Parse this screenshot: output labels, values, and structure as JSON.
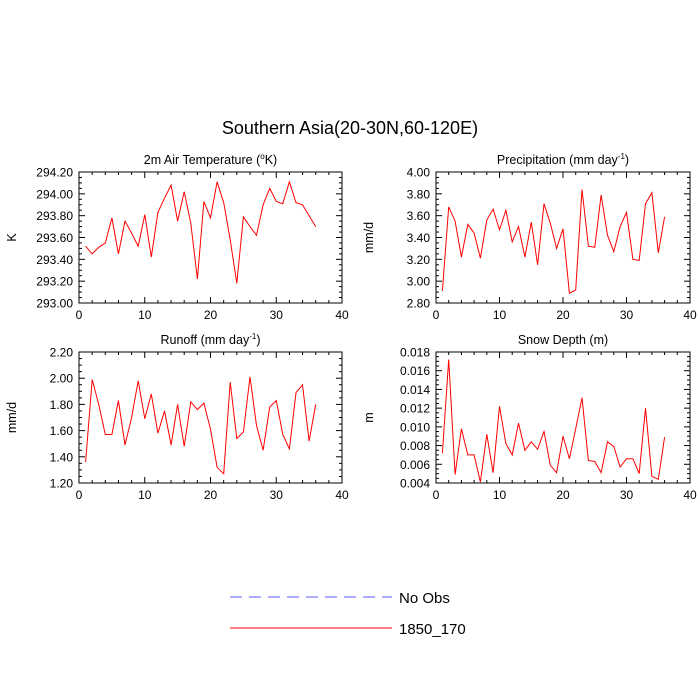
{
  "page_title": "Southern Asia(20-30N,60-120E)",
  "legend": {
    "obs_label": "No Obs",
    "model_label": "1850_170",
    "obs_color": "#5a5aff",
    "model_color": "#ff0000"
  },
  "chart_data": [
    {
      "type": "line",
      "title": "2m Air Temperature (°K)",
      "title_main": "2m Air Temperature (",
      "title_sup": "o",
      "title_tail": "K)",
      "xlabel": "",
      "ylabel": "K",
      "xlim": [
        0,
        40
      ],
      "ylim": [
        293.0,
        294.2
      ],
      "xticks": [
        0,
        10,
        20,
        30,
        40
      ],
      "yticks": [
        293.0,
        293.2,
        293.4,
        293.6,
        293.8,
        294.0,
        294.2
      ],
      "ytick_labels": [
        "293.00",
        "293.20",
        "293.40",
        "293.60",
        "293.80",
        "294.00",
        "294.20"
      ],
      "series": [
        {
          "name": "1850_170",
          "color": "#ff0000",
          "x": [
            1,
            2,
            3,
            4,
            5,
            6,
            7,
            8,
            9,
            10,
            11,
            12,
            13,
            14,
            15,
            16,
            17,
            18,
            19,
            20,
            21,
            22,
            23,
            24,
            25,
            26,
            27,
            28,
            29,
            30,
            31,
            32,
            33,
            34,
            35,
            36
          ],
          "y": [
            293.52,
            293.45,
            293.51,
            293.55,
            293.78,
            293.45,
            293.75,
            293.64,
            293.52,
            293.81,
            293.42,
            293.83,
            293.96,
            294.08,
            293.75,
            294.02,
            293.73,
            293.22,
            293.93,
            293.78,
            294.11,
            293.92,
            293.58,
            293.18,
            293.79,
            293.7,
            293.62,
            293.9,
            294.05,
            293.93,
            293.91,
            294.11,
            293.92,
            293.9,
            293.8,
            293.7
          ]
        }
      ]
    },
    {
      "type": "line",
      "title": "Precipitation (mm day-1)",
      "title_main": "Precipitation (mm day",
      "title_sup": "-1",
      "title_tail": ")",
      "xlabel": "",
      "ylabel": "mm/d",
      "xlim": [
        0,
        40
      ],
      "ylim": [
        2.8,
        4.0
      ],
      "xticks": [
        0,
        10,
        20,
        30,
        40
      ],
      "yticks": [
        2.8,
        3.0,
        3.2,
        3.4,
        3.6,
        3.8,
        4.0
      ],
      "ytick_labels": [
        "2.80",
        "3.00",
        "3.20",
        "3.40",
        "3.60",
        "3.80",
        "4.00"
      ],
      "series": [
        {
          "name": "1850_170",
          "color": "#ff0000",
          "x": [
            1,
            2,
            3,
            4,
            5,
            6,
            7,
            8,
            9,
            10,
            11,
            12,
            13,
            14,
            15,
            16,
            17,
            18,
            19,
            20,
            21,
            22,
            23,
            24,
            25,
            26,
            27,
            28,
            29,
            30,
            31,
            32,
            33,
            34,
            35,
            36
          ],
          "y": [
            2.91,
            3.68,
            3.55,
            3.22,
            3.52,
            3.44,
            3.21,
            3.56,
            3.66,
            3.47,
            3.65,
            3.36,
            3.5,
            3.22,
            3.54,
            3.15,
            3.71,
            3.53,
            3.3,
            3.48,
            2.89,
            2.92,
            3.84,
            3.32,
            3.31,
            3.79,
            3.42,
            3.27,
            3.5,
            3.63,
            3.2,
            3.19,
            3.71,
            3.81,
            3.26,
            3.59
          ]
        }
      ]
    },
    {
      "type": "line",
      "title": "Runoff (mm day-1)",
      "title_main": "Runoff (mm day",
      "title_sup": "-1",
      "title_tail": ")",
      "xlabel": "",
      "ylabel": "mm/d",
      "xlim": [
        0,
        40
      ],
      "ylim": [
        1.2,
        2.2
      ],
      "xticks": [
        0,
        10,
        20,
        30,
        40
      ],
      "yticks": [
        1.2,
        1.4,
        1.6,
        1.8,
        2.0,
        2.2
      ],
      "ytick_labels": [
        "1.20",
        "1.40",
        "1.60",
        "1.80",
        "2.00",
        "2.20"
      ],
      "series": [
        {
          "name": "1850_170",
          "color": "#ff0000",
          "x": [
            1,
            2,
            3,
            4,
            5,
            6,
            7,
            8,
            9,
            10,
            11,
            12,
            13,
            14,
            15,
            16,
            17,
            18,
            19,
            20,
            21,
            22,
            23,
            24,
            25,
            26,
            27,
            28,
            29,
            30,
            31,
            32,
            33,
            34,
            35,
            36
          ],
          "y": [
            1.36,
            1.99,
            1.8,
            1.57,
            1.57,
            1.83,
            1.49,
            1.7,
            1.98,
            1.69,
            1.88,
            1.58,
            1.75,
            1.49,
            1.8,
            1.48,
            1.82,
            1.76,
            1.81,
            1.61,
            1.32,
            1.27,
            1.97,
            1.54,
            1.59,
            2.01,
            1.64,
            1.45,
            1.78,
            1.83,
            1.57,
            1.46,
            1.89,
            1.95,
            1.52,
            1.8
          ]
        }
      ]
    },
    {
      "type": "line",
      "title": "Snow Depth (m)",
      "title_main": "Snow Depth (m)",
      "title_sup": "",
      "title_tail": "",
      "xlabel": "",
      "ylabel": "m",
      "xlim": [
        0,
        40
      ],
      "ylim": [
        0.004,
        0.018
      ],
      "xticks": [
        0,
        10,
        20,
        30,
        40
      ],
      "yticks": [
        0.004,
        0.006,
        0.008,
        0.01,
        0.012,
        0.014,
        0.016,
        0.018
      ],
      "ytick_labels": [
        "0.004",
        "0.006",
        "0.008",
        "0.010",
        "0.012",
        "0.014",
        "0.016",
        "0.018"
      ],
      "series": [
        {
          "name": "1850_170",
          "color": "#ff0000",
          "x": [
            1,
            2,
            3,
            4,
            5,
            6,
            7,
            8,
            9,
            10,
            11,
            12,
            13,
            14,
            15,
            16,
            17,
            18,
            19,
            20,
            21,
            22,
            23,
            24,
            25,
            26,
            27,
            28,
            29,
            30,
            31,
            32,
            33,
            34,
            35,
            36
          ],
          "y": [
            0.0072,
            0.0172,
            0.0049,
            0.0098,
            0.007,
            0.007,
            0.0041,
            0.0092,
            0.0051,
            0.0122,
            0.0082,
            0.007,
            0.0104,
            0.0075,
            0.0084,
            0.0076,
            0.0095,
            0.0059,
            0.0051,
            0.009,
            0.0066,
            0.0098,
            0.0131,
            0.0064,
            0.0063,
            0.0051,
            0.0084,
            0.0079,
            0.0057,
            0.0066,
            0.0066,
            0.005,
            0.012,
            0.0047,
            0.0044,
            0.0089
          ]
        }
      ]
    }
  ]
}
